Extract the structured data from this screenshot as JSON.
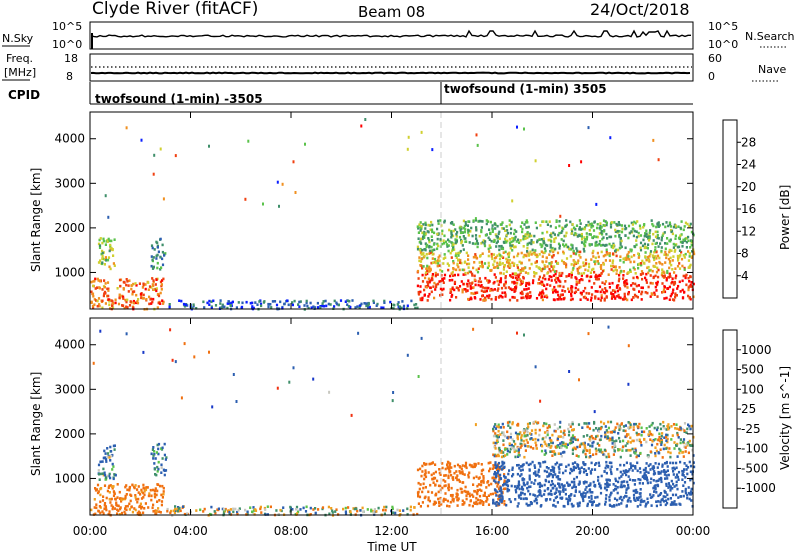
{
  "header": {
    "station": "Clyde River (fitACF)",
    "beam": "Beam 08",
    "date": "24/Oct/2018"
  },
  "top_panels": {
    "nsky_label": "N.Sky",
    "nsky_tick_hi": "10^5",
    "nsky_tick_lo": "10^0",
    "nsearch_label": "N.Search",
    "nsearch_tick_hi": "10^5",
    "nsearch_tick_lo": "10^0",
    "freq_label": "Freq.",
    "freq_unit": "[MHz]",
    "freq_tick_hi": "18",
    "freq_tick_lo": "8",
    "nave_label": "Nave",
    "nave_tick_hi": "60",
    "nave_tick_lo": "0",
    "cpid_label": "CPID",
    "cpid_1": "twofsound (1-min) -3505",
    "cpid_2": "twofsound (1-min) 3505"
  },
  "chart_data": [
    {
      "type": "heatmap",
      "parameter": "Power",
      "colorbar_label": "Power [dB]",
      "colorbar_ticks": [
        "4",
        "8",
        "12",
        "16",
        "20",
        "24",
        "28"
      ],
      "colorbar_colors": [
        "#0a1eff",
        "#2c5fb0",
        "#3f8f6a",
        "#5ac24a",
        "#d0d030",
        "#f09020",
        "#f04010",
        "#ff0000"
      ],
      "ylabel": "Slant Range [km]",
      "ylim": [
        180,
        4600
      ],
      "yticks": [
        "1000",
        "2000",
        "3000",
        "4000"
      ],
      "xlim": [
        0,
        24
      ],
      "xticks": [
        "00:00",
        "04:00",
        "08:00",
        "12:00",
        "16:00",
        "20:00",
        "00:00"
      ],
      "scatter_regions": [
        {
          "t_start": 0.0,
          "t_end": 2.9,
          "range_min": 200,
          "range_max": 900,
          "dominant": "red/orange",
          "level_db": 24
        },
        {
          "t_start": 0.3,
          "t_end": 1.0,
          "range_min": 1000,
          "range_max": 1800,
          "dominant": "orange/green",
          "level_db": 16
        },
        {
          "t_start": 2.4,
          "t_end": 3.0,
          "range_min": 1100,
          "range_max": 1800,
          "dominant": "green/blue",
          "level_db": 10
        },
        {
          "t_start": 3.0,
          "t_end": 13.0,
          "range_min": 200,
          "range_max": 400,
          "dominant": "blue/green",
          "level_db": 6
        },
        {
          "t_start": 13.0,
          "t_end": 24.0,
          "range_min": 400,
          "range_max": 1000,
          "dominant": "red",
          "level_db": 28
        },
        {
          "t_start": 13.0,
          "t_end": 24.0,
          "range_min": 1000,
          "range_max": 1500,
          "dominant": "orange/yellow",
          "level_db": 20
        },
        {
          "t_start": 13.0,
          "t_end": 24.0,
          "range_min": 1500,
          "range_max": 2200,
          "dominant": "green/yellow",
          "level_db": 13
        }
      ]
    },
    {
      "type": "heatmap",
      "parameter": "Velocity",
      "colorbar_label": "Velocity [m s^-1]",
      "colorbar_ticks": [
        "1000",
        "500",
        "100",
        "25",
        "-25",
        "-100",
        "-500",
        "-1000"
      ],
      "colorbar_colors": [
        "#1838c8",
        "#2c5fb0",
        "#3f8f6a",
        "#5ac24a",
        "#c8c8c0",
        "#f0a020",
        "#f07010",
        "#f03010",
        "#ff0000"
      ],
      "ylabel": "Slant Range [km]",
      "ylim": [
        180,
        4600
      ],
      "yticks": [
        "1000",
        "2000",
        "3000",
        "4000"
      ],
      "xlim": [
        0,
        24
      ],
      "xticks": [
        "00:00",
        "04:00",
        "08:00",
        "12:00",
        "16:00",
        "20:00",
        "00:00"
      ],
      "xlabel": "Time UT",
      "scatter_regions": [
        {
          "t_start": 0.0,
          "t_end": 2.9,
          "range_min": 200,
          "range_max": 900,
          "dominant": "orange",
          "velocity": -200
        },
        {
          "t_start": 0.3,
          "t_end": 1.0,
          "range_min": 1000,
          "range_max": 1800,
          "dominant": "green",
          "velocity": 100
        },
        {
          "t_start": 2.4,
          "t_end": 3.0,
          "range_min": 1100,
          "range_max": 1800,
          "dominant": "green",
          "velocity": 150
        },
        {
          "t_start": 3.0,
          "t_end": 13.0,
          "range_min": 200,
          "range_max": 400,
          "dominant": "grey",
          "velocity": 0
        },
        {
          "t_start": 13.0,
          "t_end": 16.5,
          "range_min": 400,
          "range_max": 1400,
          "dominant": "orange/red",
          "velocity": -300
        },
        {
          "t_start": 16.0,
          "t_end": 24.0,
          "range_min": 400,
          "range_max": 1400,
          "dominant": "teal/blue",
          "velocity": 300
        },
        {
          "t_start": 16.0,
          "t_end": 24.0,
          "range_min": 1500,
          "range_max": 2300,
          "dominant": "grey",
          "velocity": 0
        }
      ]
    }
  ]
}
